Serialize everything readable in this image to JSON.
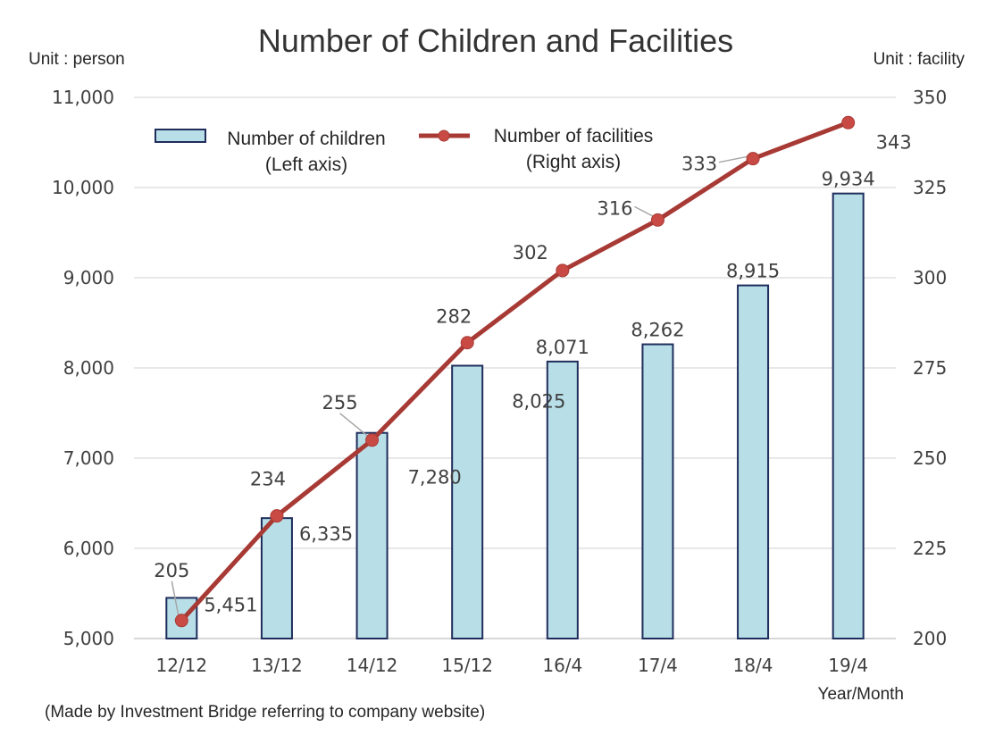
{
  "chart_data": {
    "type": "bar",
    "title": "Number of Children and Facilities",
    "left_unit_label": "Unit : person",
    "right_unit_label": "Unit : facility",
    "xlabel": "Year/Month",
    "source_note": "(Made by Investment Bridge referring to company website)",
    "categories": [
      "12/12",
      "13/12",
      "14/12",
      "15/12",
      "16/4",
      "17/4",
      "18/4",
      "19/4"
    ],
    "left_axis": {
      "min": 5000,
      "max": 11000,
      "ticks": [
        "5,000",
        "6,000",
        "7,000",
        "8,000",
        "9,000",
        "10,000",
        "11,000"
      ]
    },
    "right_axis": {
      "min": 200,
      "max": 350,
      "ticks": [
        "200",
        "225",
        "250",
        "275",
        "300",
        "325",
        "350"
      ]
    },
    "grid": true,
    "legend_placement": "top-left",
    "series": [
      {
        "name_lines": [
          "Number of children",
          "(Left axis)"
        ],
        "type": "bar",
        "axis": "left",
        "values": [
          5451,
          6335,
          7280,
          8025,
          8071,
          8262,
          8915,
          9934
        ],
        "labels": [
          "5,451",
          "6,335",
          "7,280",
          "8,025",
          "8,071",
          "8,262",
          "8,915",
          "9,934"
        ],
        "fill_color": "#b8dfe8",
        "border_color": "#1f2d5c"
      },
      {
        "name_lines": [
          "Number of facilities",
          "(Right axis)"
        ],
        "type": "line",
        "axis": "right",
        "values": [
          205,
          234,
          255,
          282,
          302,
          316,
          333,
          343
        ],
        "labels": [
          "205",
          "234",
          "255",
          "282",
          "302",
          "316",
          "333",
          "343"
        ],
        "color": "#a83a35"
      }
    ]
  }
}
